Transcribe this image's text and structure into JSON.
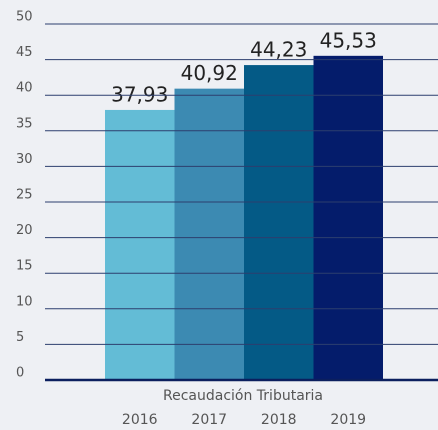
{
  "chart_data": {
    "type": "bar",
    "x_label": "Recaudación Tributaria",
    "categories": [
      "2016",
      "2017",
      "2018",
      "2019"
    ],
    "values": [
      37.93,
      40.92,
      44.23,
      45.53
    ],
    "value_labels": [
      "37,93",
      "40,92",
      "44,23",
      "45,53"
    ],
    "colors": [
      "#63bcd6",
      "#3c8ab2",
      "#045a86",
      "#041c6b"
    ],
    "ylim": [
      0,
      50
    ],
    "yticks": [
      0,
      5,
      10,
      15,
      20,
      25,
      30,
      35,
      40,
      45,
      50
    ],
    "grid": true
  }
}
